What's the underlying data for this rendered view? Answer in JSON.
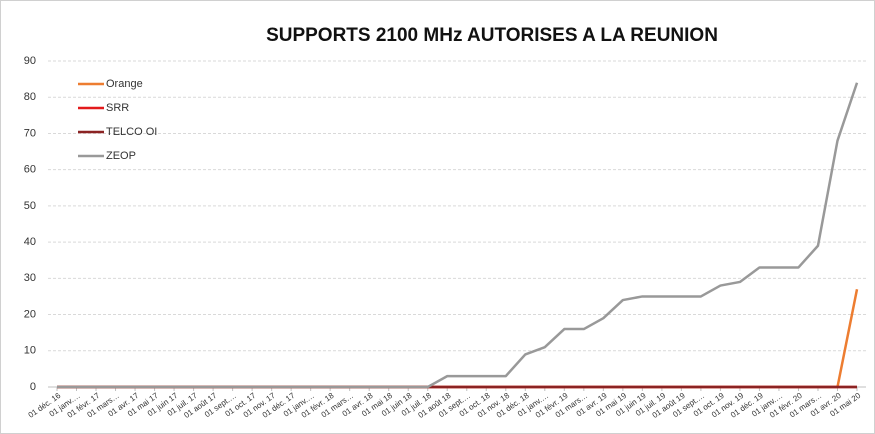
{
  "chart_data": {
    "type": "line",
    "title": "SUPPORTS 2100 MHz AUTORISES A LA REUNION",
    "categories": [
      "01 déc. 16",
      "01 janv.…",
      "01 févr. 17",
      "01 mars…",
      "01 avr. 17",
      "01 mai 17",
      "01 juin 17",
      "01 juil. 17",
      "01 août 17",
      "01 sept.…",
      "01 oct. 17",
      "01 nov. 17",
      "01 déc. 17",
      "01 janv.…",
      "01 févr. 18",
      "01 mars…",
      "01 avr. 18",
      "01 mai 18",
      "01 juin 18",
      "01 juil. 18",
      "01 août 18",
      "01 sept.…",
      "01 oct. 18",
      "01 nov. 18",
      "01 déc. 18",
      "01 janv.…",
      "01 févr. 19",
      "01 mars…",
      "01 avr. 19",
      "01 mai 19",
      "01 juin 19",
      "01 juil. 19",
      "01 août 19",
      "01 sept.…",
      "01 oct. 19",
      "01 nov. 19",
      "01 déc. 19",
      "01 janv.…",
      "01 févr. 20",
      "01 mars…",
      "01 avr. 20",
      "01 mai 20"
    ],
    "series": [
      {
        "name": "Orange",
        "color": "#ed7d31",
        "values": [
          0,
          0,
          0,
          0,
          0,
          0,
          0,
          0,
          0,
          0,
          0,
          0,
          0,
          0,
          0,
          0,
          0,
          0,
          0,
          0,
          0,
          0,
          0,
          0,
          0,
          0,
          0,
          0,
          0,
          0,
          0,
          0,
          0,
          0,
          0,
          0,
          0,
          0,
          0,
          0,
          0,
          27
        ]
      },
      {
        "name": "SRR",
        "color": "#e31a1c",
        "values": [
          0,
          0,
          0,
          0,
          0,
          0,
          0,
          0,
          0,
          0,
          0,
          0,
          0,
          0,
          0,
          0,
          0,
          0,
          0,
          0,
          0,
          0,
          0,
          0,
          0,
          0,
          0,
          0,
          0,
          0,
          0,
          0,
          0,
          0,
          0,
          0,
          0,
          0,
          0,
          0,
          0,
          0
        ]
      },
      {
        "name": "TELCO OI",
        "color": "#8b2323",
        "values": [
          0,
          0,
          0,
          0,
          0,
          0,
          0,
          0,
          0,
          0,
          0,
          0,
          0,
          0,
          0,
          0,
          0,
          0,
          0,
          0,
          0,
          0,
          0,
          0,
          0,
          0,
          0,
          0,
          0,
          0,
          0,
          0,
          0,
          0,
          0,
          0,
          0,
          0,
          0,
          0,
          0,
          0
        ]
      },
      {
        "name": "ZEOP",
        "color": "#999999",
        "values": [
          0,
          0,
          0,
          0,
          0,
          0,
          0,
          0,
          0,
          0,
          0,
          0,
          0,
          0,
          0,
          0,
          0,
          0,
          0,
          0,
          3,
          3,
          3,
          3,
          9,
          11,
          16,
          16,
          19,
          24,
          25,
          25,
          25,
          25,
          28,
          29,
          33,
          33,
          33,
          39,
          68,
          84
        ]
      }
    ],
    "ylim": [
      0,
      90
    ],
    "yticks": [
      0,
      10,
      20,
      30,
      40,
      50,
      60,
      70,
      80,
      90
    ],
    "grid": true,
    "legend": "top-left"
  }
}
